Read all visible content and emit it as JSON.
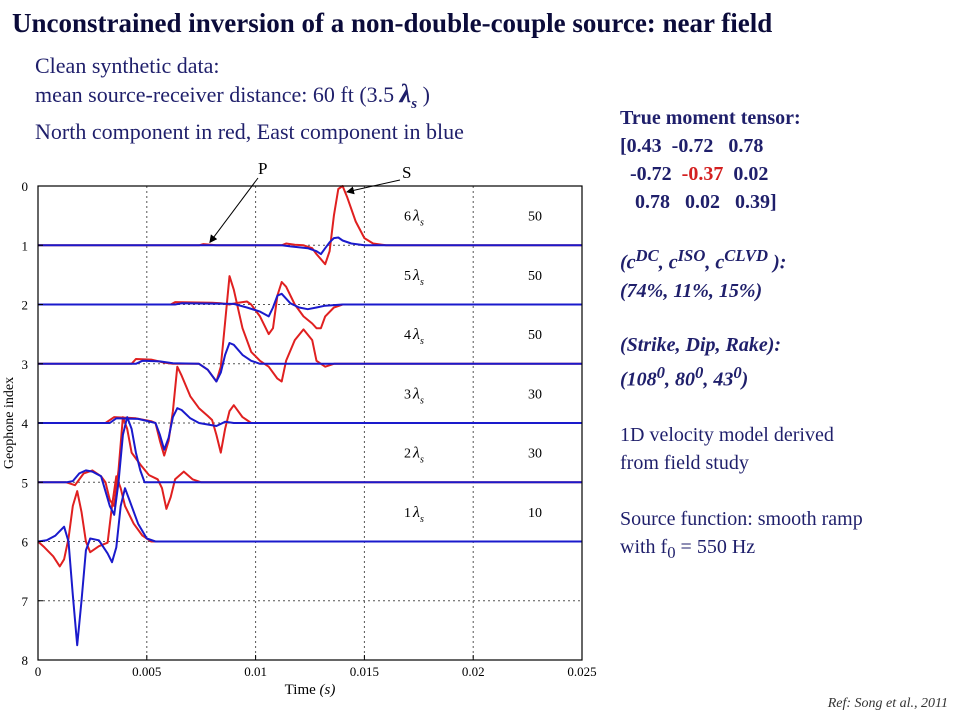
{
  "title": "Unconstrained inversion of a non-double-couple source: near field",
  "subtitle": {
    "line1": "Clean synthetic data:",
    "line2_prefix": "mean source-receiver distance: 60 ft (3.5 ",
    "line2_lambda": "λ",
    "line2_sub": "s",
    "line2_suffix": " )",
    "line3": "North component in red, East component in blue"
  },
  "right_panel": {
    "mt_title": "True moment tensor:",
    "mt_row1": "[0.43  -0.72   0.78",
    "mt_row2_a": "  -0.72  ",
    "mt_row2_red": "-0.37",
    "mt_row2_b": "  0.02",
    "mt_row3": "   0.78   0.02   0.39]",
    "decomp_label": "(c",
    "decomp_sup1": "DC",
    "decomp_sep1": ", c",
    "decomp_sup2": "ISO",
    "decomp_sep2": ", c",
    "decomp_sup3": "CLVD",
    "decomp_end": " ):",
    "decomp_values": "(74%, 11%, 15%)",
    "sdr_label": "(Strike, Dip, Rake):",
    "sdr_a": "(108",
    "sdr_b": ", 80",
    "sdr_c": ", 43",
    "sdr_sup": "0",
    "sdr_end": ")",
    "velocity_line1": "1D velocity model derived",
    "velocity_line2": "from field study",
    "source_line1": "Source function: smooth ramp",
    "source_line2_a": "with f",
    "source_line2_sub": "0",
    "source_line2_b": " = 550 Hz"
  },
  "reference": "Ref: Song et al., 2011",
  "colors": {
    "north": "#e02020",
    "east": "#1a1acc",
    "text": "#1f1f6b"
  },
  "chart_data": {
    "type": "line",
    "xlabel": "Time",
    "xlabel_unit": "(s)",
    "ylabel": "Geophone index",
    "xlim": [
      0,
      0.025
    ],
    "ylim": [
      0,
      8
    ],
    "y_inverted": true,
    "x_ticks": [
      0,
      0.005,
      0.01,
      0.015,
      0.02,
      0.025
    ],
    "x_tick_labels": [
      "0",
      "0.005",
      "0.01",
      "0.015",
      "0.02",
      "0.025"
    ],
    "y_ticks": [
      0,
      1,
      2,
      3,
      4,
      5,
      6,
      7,
      8
    ],
    "y_tick_labels": [
      "0",
      "1",
      "2",
      "3",
      "4",
      "5",
      "6",
      "7",
      "8"
    ],
    "grid": "dotted",
    "phase_labels": [
      "P",
      "S"
    ],
    "geophones": [
      {
        "index": 1,
        "distance_label": "6",
        "scale": "50"
      },
      {
        "index": 2,
        "distance_label": "5",
        "scale": "50"
      },
      {
        "index": 3,
        "distance_label": "4",
        "scale": "50"
      },
      {
        "index": 4,
        "distance_label": "3",
        "scale": "30"
      },
      {
        "index": 5,
        "distance_label": "2",
        "scale": "30"
      },
      {
        "index": 6,
        "distance_label": "1",
        "scale": "10"
      }
    ],
    "series": [
      {
        "name": "North",
        "color": "#e02020",
        "traces": [
          [
            [
              0,
              1
            ],
            [
              0.0074,
              1
            ],
            [
              0.0076,
              0.98
            ],
            [
              0.0082,
              1
            ],
            [
              0.0112,
              1
            ],
            [
              0.0114,
              0.97
            ],
            [
              0.0118,
              0.99
            ],
            [
              0.0122,
              1
            ],
            [
              0.0126,
              1.05
            ],
            [
              0.0128,
              1.15
            ],
            [
              0.0132,
              1.32
            ],
            [
              0.0134,
              1.1
            ],
            [
              0.0136,
              0.5
            ],
            [
              0.0138,
              0.05
            ],
            [
              0.014,
              0
            ],
            [
              0.0142,
              0.18
            ],
            [
              0.0146,
              0.6
            ],
            [
              0.015,
              0.88
            ],
            [
              0.0154,
              0.97
            ],
            [
              0.016,
              1
            ],
            [
              0.025,
              1
            ]
          ],
          [
            [
              0,
              2
            ],
            [
              0.0061,
              2
            ],
            [
              0.0063,
              1.96
            ],
            [
              0.008,
              1.97
            ],
            [
              0.0084,
              1.98
            ],
            [
              0.0088,
              2
            ],
            [
              0.0092,
              1.97
            ],
            [
              0.0096,
              1.95
            ],
            [
              0.0098,
              2.0
            ],
            [
              0.0102,
              2.2
            ],
            [
              0.0106,
              2.5
            ],
            [
              0.0108,
              2.4
            ],
            [
              0.011,
              1.85
            ],
            [
              0.0112,
              1.62
            ],
            [
              0.0114,
              1.7
            ],
            [
              0.0118,
              2.0
            ],
            [
              0.0122,
              2.2
            ],
            [
              0.0126,
              2.32
            ],
            [
              0.0128,
              2.4
            ],
            [
              0.013,
              2.4
            ],
            [
              0.0132,
              2.2
            ],
            [
              0.0136,
              2.05
            ],
            [
              0.014,
              2.0
            ],
            [
              0.025,
              2
            ]
          ],
          [
            [
              0,
              3
            ],
            [
              0.0043,
              3
            ],
            [
              0.0045,
              2.92
            ],
            [
              0.0052,
              2.93
            ],
            [
              0.0058,
              2.98
            ],
            [
              0.0062,
              3.0
            ],
            [
              0.0068,
              3.0
            ],
            [
              0.0074,
              3.0
            ],
            [
              0.0078,
              3.1
            ],
            [
              0.0082,
              3.3
            ],
            [
              0.0084,
              3.05
            ],
            [
              0.0086,
              2.3
            ],
            [
              0.0088,
              1.52
            ],
            [
              0.009,
              1.75
            ],
            [
              0.0094,
              2.4
            ],
            [
              0.0098,
              2.8
            ],
            [
              0.0102,
              2.95
            ],
            [
              0.0106,
              3.05
            ],
            [
              0.011,
              3.25
            ],
            [
              0.0112,
              3.3
            ],
            [
              0.0114,
              2.95
            ],
            [
              0.0118,
              2.6
            ],
            [
              0.0122,
              2.42
            ],
            [
              0.0126,
              2.6
            ],
            [
              0.0128,
              2.95
            ],
            [
              0.0132,
              3.05
            ],
            [
              0.0136,
              3.0
            ],
            [
              0.025,
              3
            ]
          ],
          [
            [
              0,
              4
            ],
            [
              0.0031,
              4
            ],
            [
              0.0035,
              3.9
            ],
            [
              0.0045,
              3.92
            ],
            [
              0.0052,
              3.97
            ],
            [
              0.0054,
              4.0
            ],
            [
              0.0056,
              4.3
            ],
            [
              0.0058,
              4.55
            ],
            [
              0.006,
              4.3
            ],
            [
              0.0062,
              3.8
            ],
            [
              0.0064,
              3.05
            ],
            [
              0.0066,
              3.2
            ],
            [
              0.007,
              3.55
            ],
            [
              0.0074,
              3.75
            ],
            [
              0.0078,
              3.88
            ],
            [
              0.008,
              3.95
            ],
            [
              0.0082,
              4.2
            ],
            [
              0.0084,
              4.5
            ],
            [
              0.0086,
              4.1
            ],
            [
              0.0088,
              3.8
            ],
            [
              0.009,
              3.7
            ],
            [
              0.0094,
              3.9
            ],
            [
              0.0098,
              4.0
            ],
            [
              0.025,
              4
            ]
          ],
          [
            [
              0,
              5
            ],
            [
              0.0013,
              5
            ],
            [
              0.0017,
              5.05
            ],
            [
              0.0021,
              4.85
            ],
            [
              0.0025,
              4.8
            ],
            [
              0.0029,
              4.9
            ],
            [
              0.0031,
              5.0
            ],
            [
              0.0033,
              5.3
            ],
            [
              0.0035,
              5.4
            ],
            [
              0.0037,
              4.8
            ],
            [
              0.0039,
              3.9
            ],
            [
              0.0041,
              4.1
            ],
            [
              0.0043,
              4.5
            ],
            [
              0.0047,
              4.7
            ],
            [
              0.0051,
              4.88
            ],
            [
              0.0055,
              4.95
            ],
            [
              0.0057,
              5.1
            ],
            [
              0.0059,
              5.45
            ],
            [
              0.0061,
              5.25
            ],
            [
              0.0063,
              4.95
            ],
            [
              0.0067,
              4.82
            ],
            [
              0.0071,
              4.95
            ],
            [
              0.0075,
              5.0
            ],
            [
              0.025,
              5
            ]
          ],
          [
            [
              0,
              6
            ],
            [
              0.0003,
              6.1
            ],
            [
              0.0007,
              6.25
            ],
            [
              0.001,
              6.42
            ],
            [
              0.0012,
              6.3
            ],
            [
              0.0014,
              5.95
            ],
            [
              0.0016,
              5.4
            ],
            [
              0.0018,
              5.15
            ],
            [
              0.002,
              5.5
            ],
            [
              0.0022,
              6.0
            ],
            [
              0.0024,
              6.18
            ],
            [
              0.0028,
              6.08
            ],
            [
              0.0032,
              6.02
            ],
            [
              0.0034,
              5.4
            ],
            [
              0.0036,
              4.9
            ],
            [
              0.0038,
              5.1
            ],
            [
              0.004,
              5.4
            ],
            [
              0.0044,
              5.7
            ],
            [
              0.0048,
              5.9
            ],
            [
              0.0052,
              6.0
            ],
            [
              0.025,
              6
            ]
          ]
        ]
      },
      {
        "name": "East",
        "color": "#1a1acc",
        "traces": [
          [
            [
              0,
              1
            ],
            [
              0.0112,
              1
            ],
            [
              0.0116,
              1.02
            ],
            [
              0.0124,
              1.05
            ],
            [
              0.0128,
              1.1
            ],
            [
              0.013,
              1.15
            ],
            [
              0.0132,
              1.05
            ],
            [
              0.0134,
              0.95
            ],
            [
              0.0136,
              0.88
            ],
            [
              0.0138,
              0.87
            ],
            [
              0.014,
              0.92
            ],
            [
              0.0144,
              0.97
            ],
            [
              0.015,
              1
            ],
            [
              0.025,
              1
            ]
          ],
          [
            [
              0,
              2
            ],
            [
              0.0063,
              2
            ],
            [
              0.0066,
              1.98
            ],
            [
              0.009,
              1.99
            ],
            [
              0.0096,
              2.05
            ],
            [
              0.0102,
              2.12
            ],
            [
              0.0106,
              2.2
            ],
            [
              0.0108,
              2.05
            ],
            [
              0.011,
              1.85
            ],
            [
              0.0112,
              1.82
            ],
            [
              0.0116,
              1.98
            ],
            [
              0.012,
              2.05
            ],
            [
              0.0124,
              2.08
            ],
            [
              0.0128,
              2.05
            ],
            [
              0.0132,
              2.02
            ],
            [
              0.014,
              2
            ],
            [
              0.025,
              2
            ]
          ],
          [
            [
              0,
              3
            ],
            [
              0.0045,
              3
            ],
            [
              0.0048,
              2.95
            ],
            [
              0.0056,
              2.96
            ],
            [
              0.0062,
              2.99
            ],
            [
              0.0074,
              3.0
            ],
            [
              0.0078,
              3.1
            ],
            [
              0.0082,
              3.3
            ],
            [
              0.0084,
              3.15
            ],
            [
              0.0086,
              2.85
            ],
            [
              0.0088,
              2.65
            ],
            [
              0.009,
              2.68
            ],
            [
              0.0094,
              2.85
            ],
            [
              0.0098,
              2.95
            ],
            [
              0.0102,
              3.0
            ],
            [
              0.025,
              3
            ]
          ],
          [
            [
              0,
              4
            ],
            [
              0.0033,
              4
            ],
            [
              0.0036,
              3.92
            ],
            [
              0.0046,
              3.93
            ],
            [
              0.0054,
              4.0
            ],
            [
              0.0056,
              4.2
            ],
            [
              0.0058,
              4.45
            ],
            [
              0.006,
              4.25
            ],
            [
              0.0062,
              3.9
            ],
            [
              0.0064,
              3.75
            ],
            [
              0.0066,
              3.78
            ],
            [
              0.007,
              3.92
            ],
            [
              0.0074,
              4.0
            ],
            [
              0.0082,
              4.05
            ],
            [
              0.0086,
              3.98
            ],
            [
              0.009,
              4.0
            ],
            [
              0.025,
              4
            ]
          ],
          [
            [
              0,
              5
            ],
            [
              0.0013,
              5
            ],
            [
              0.0016,
              4.98
            ],
            [
              0.0019,
              4.85
            ],
            [
              0.0022,
              4.8
            ],
            [
              0.0025,
              4.82
            ],
            [
              0.0029,
              4.9
            ],
            [
              0.0033,
              5.4
            ],
            [
              0.0035,
              5.55
            ],
            [
              0.0037,
              5.0
            ],
            [
              0.0039,
              4.2
            ],
            [
              0.0041,
              3.9
            ],
            [
              0.0043,
              4.1
            ],
            [
              0.0045,
              4.5
            ],
            [
              0.0047,
              4.8
            ],
            [
              0.0049,
              5.0
            ],
            [
              0.025,
              5
            ]
          ],
          [
            [
              0,
              6
            ],
            [
              0.0004,
              5.98
            ],
            [
              0.0008,
              5.9
            ],
            [
              0.0012,
              5.75
            ],
            [
              0.0014,
              6.0
            ],
            [
              0.0016,
              6.9
            ],
            [
              0.0018,
              7.75
            ],
            [
              0.002,
              7.0
            ],
            [
              0.0022,
              6.15
            ],
            [
              0.0024,
              5.95
            ],
            [
              0.0028,
              5.98
            ],
            [
              0.0032,
              6.2
            ],
            [
              0.0034,
              6.35
            ],
            [
              0.0036,
              6.1
            ],
            [
              0.0038,
              5.4
            ],
            [
              0.004,
              5.1
            ],
            [
              0.0042,
              5.3
            ],
            [
              0.0046,
              5.7
            ],
            [
              0.005,
              5.95
            ],
            [
              0.0054,
              6.0
            ],
            [
              0.025,
              6
            ]
          ]
        ]
      }
    ]
  }
}
